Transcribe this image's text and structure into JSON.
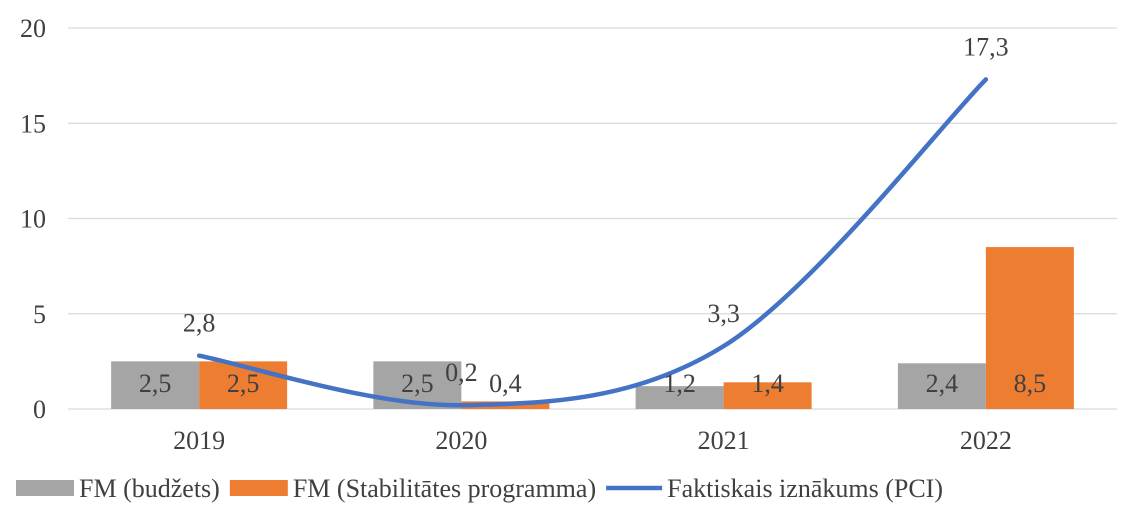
{
  "chart_data": {
    "type": "bar",
    "categories": [
      "2019",
      "2020",
      "2021",
      "2022"
    ],
    "ylim": [
      0,
      20
    ],
    "yticks": [
      0,
      5,
      10,
      15,
      20
    ],
    "grid": true,
    "legend_position": "bottom",
    "series": [
      {
        "name": "FM (budžets)",
        "kind": "bar",
        "color": "#A5A5A5",
        "values": [
          2.5,
          2.5,
          1.2,
          2.4
        ],
        "labels": [
          "2,5",
          "2,5",
          "1,2",
          "2,4"
        ]
      },
      {
        "name": "FM (Stabilitātes programma)",
        "kind": "bar",
        "color": "#ED7D31",
        "values": [
          2.5,
          0.4,
          1.4,
          8.5
        ],
        "labels": [
          "2,5",
          "0,4",
          "1,4",
          "8,5"
        ]
      },
      {
        "name": "Faktiskais iznākums (PCI)",
        "kind": "line",
        "color": "#4472C4",
        "smooth": true,
        "values": [
          2.8,
          0.2,
          3.3,
          17.3
        ],
        "labels": [
          "2,8",
          "0,2",
          "3,3",
          "17,3"
        ]
      }
    ]
  }
}
